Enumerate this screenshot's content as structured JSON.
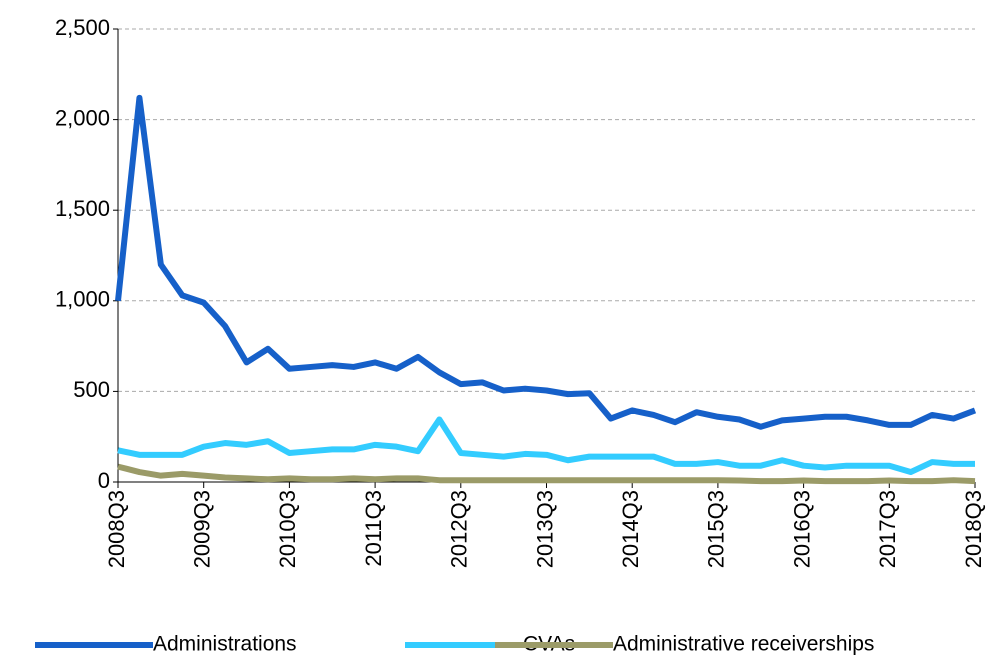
{
  "chart_data": {
    "type": "line",
    "categories": [
      "2008Q3",
      null,
      null,
      null,
      "2009Q3",
      null,
      null,
      null,
      "2010Q3",
      null,
      null,
      null,
      "2011Q3",
      null,
      null,
      null,
      "2012Q3",
      null,
      null,
      null,
      "2013Q3",
      null,
      null,
      null,
      "2014Q3",
      null,
      null,
      null,
      "2015Q3",
      null,
      null,
      null,
      "2016Q3",
      null,
      null,
      null,
      "2017Q3",
      null,
      null,
      null,
      "2018Q3"
    ],
    "series": [
      {
        "name": "Administrations",
        "color": "#1660c9",
        "values": [
          1000,
          2120,
          1200,
          1030,
          990,
          860,
          660,
          735,
          625,
          635,
          645,
          635,
          660,
          625,
          690,
          605,
          540,
          550,
          505,
          515,
          505,
          485,
          490,
          350,
          395,
          370,
          330,
          385,
          360,
          345,
          305,
          340,
          350,
          360,
          360,
          340,
          315,
          315,
          370,
          350,
          395
        ]
      },
      {
        "name": "CVAs",
        "color": "#33ccff",
        "values": [
          175,
          150,
          150,
          150,
          195,
          215,
          205,
          225,
          160,
          170,
          180,
          180,
          205,
          195,
          170,
          345,
          160,
          150,
          140,
          155,
          150,
          120,
          140,
          140,
          140,
          140,
          100,
          100,
          110,
          90,
          90,
          120,
          90,
          80,
          90,
          90,
          90,
          55,
          110,
          100,
          100
        ]
      },
      {
        "name": "Administrative receiverships",
        "color": "#9b9b68",
        "values": [
          85,
          55,
          35,
          45,
          35,
          25,
          20,
          15,
          20,
          15,
          15,
          20,
          15,
          20,
          20,
          10,
          10,
          10,
          10,
          10,
          10,
          10,
          10,
          10,
          10,
          10,
          10,
          10,
          10,
          8,
          5,
          5,
          8,
          5,
          5,
          5,
          8,
          5,
          5,
          10,
          5
        ]
      }
    ],
    "ylim": [
      0,
      2500
    ],
    "yticks": [
      0,
      500,
      {
        "value": 1000,
        "label": "1,000"
      },
      {
        "value": 1500,
        "label": "1,500"
      },
      {
        "value": 2000,
        "label": "2,000"
      },
      {
        "value": 2500,
        "label": "2,500"
      }
    ],
    "grid": true,
    "legend": "bottom"
  }
}
